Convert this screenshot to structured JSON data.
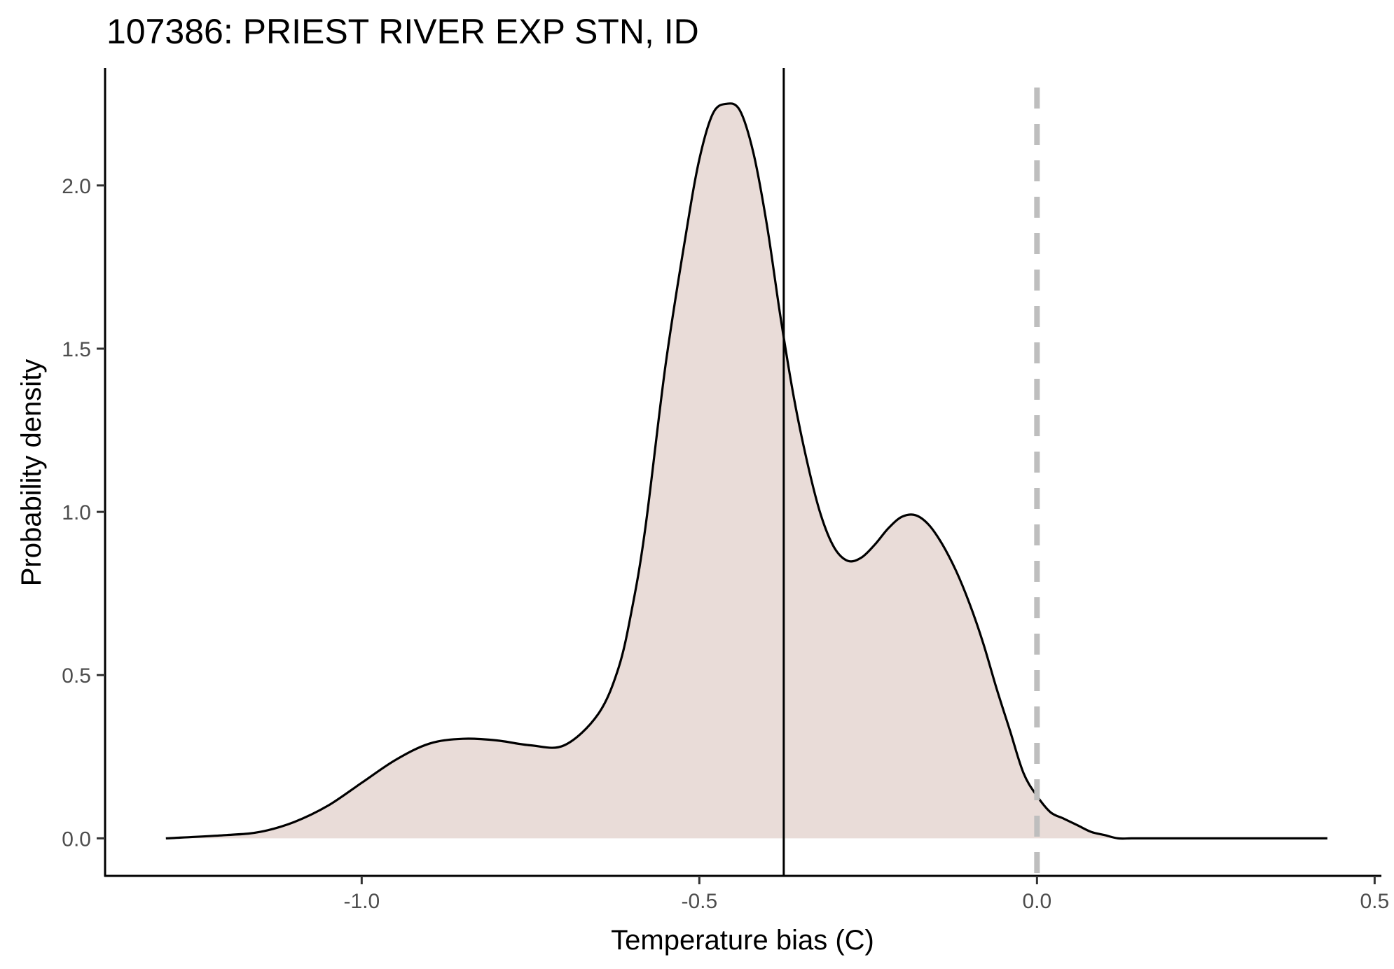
{
  "chart_data": {
    "type": "area",
    "title": "107386: PRIEST RIVER EXP STN, ID",
    "xlabel": "Temperature bias (C)",
    "ylabel": "Probability density",
    "xlim": [
      -1.38,
      0.51
    ],
    "ylim": [
      -0.115,
      2.36
    ],
    "x_ticks": [
      {
        "value": -1.0,
        "label": "-1.0"
      },
      {
        "value": -0.5,
        "label": "-0.5"
      },
      {
        "value": 0.0,
        "label": "0.0"
      },
      {
        "value": 0.5,
        "label": "0.5"
      }
    ],
    "y_ticks": [
      {
        "value": 0.0,
        "label": "0.0"
      },
      {
        "value": 0.5,
        "label": "0.5"
      },
      {
        "value": 1.0,
        "label": "1.0"
      },
      {
        "value": 1.5,
        "label": "1.5"
      },
      {
        "value": 2.0,
        "label": "2.0"
      }
    ],
    "grid": false,
    "fill_color": "#e9dcd8",
    "line_color": "#000000",
    "series": [
      {
        "x": [
          -1.29,
          -1.2,
          -1.15,
          -1.1,
          -1.05,
          -1.0,
          -0.95,
          -0.9,
          -0.85,
          -0.8,
          -0.75,
          -0.7,
          -0.65,
          -0.62,
          -0.6,
          -0.58,
          -0.55,
          -0.52,
          -0.5,
          -0.48,
          -0.46,
          -0.44,
          -0.42,
          -0.4,
          -0.38,
          -0.36,
          -0.34,
          -0.32,
          -0.3,
          -0.28,
          -0.26,
          -0.24,
          -0.22,
          -0.2,
          -0.18,
          -0.16,
          -0.14,
          -0.12,
          -0.1,
          -0.08,
          -0.06,
          -0.04,
          -0.02,
          0.0,
          0.02,
          0.04,
          0.06,
          0.08,
          0.1,
          0.12,
          0.14,
          0.16,
          0.18,
          0.2,
          0.25,
          0.3,
          0.35,
          0.43
        ],
        "y": [
          0.0,
          0.01,
          0.02,
          0.05,
          0.1,
          0.17,
          0.24,
          0.29,
          0.305,
          0.3,
          0.285,
          0.285,
          0.38,
          0.52,
          0.7,
          0.95,
          1.45,
          1.85,
          2.08,
          2.22,
          2.25,
          2.23,
          2.1,
          1.88,
          1.6,
          1.35,
          1.15,
          0.99,
          0.89,
          0.85,
          0.86,
          0.9,
          0.95,
          0.985,
          0.99,
          0.96,
          0.9,
          0.82,
          0.72,
          0.6,
          0.46,
          0.33,
          0.2,
          0.13,
          0.08,
          0.06,
          0.04,
          0.02,
          0.01,
          0.0,
          0.0,
          0.0,
          0.0,
          0.0,
          0.0,
          0.0,
          0.0,
          0.0
        ]
      }
    ],
    "reference_lines": [
      {
        "orientation": "vertical",
        "x": -0.375,
        "style": "solid",
        "color": "#000000"
      },
      {
        "orientation": "vertical",
        "x": 0.0,
        "style": "dashed",
        "color": "#bebebe",
        "y_top": 2.3
      }
    ]
  }
}
